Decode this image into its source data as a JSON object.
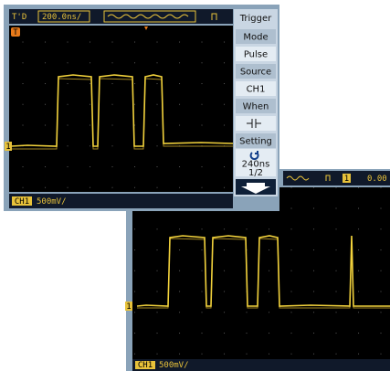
{
  "screen1": {
    "header": {
      "status": "T'D",
      "timebase": "200.0ns/"
    },
    "trigger_marker": "T",
    "channel_marker": "1",
    "menu": {
      "title": "Trigger",
      "items": [
        "Mode",
        "Pulse",
        "Source",
        "CH1",
        "When",
        "Setting",
        "240ns",
        "1/2"
      ]
    },
    "footer": {
      "channel": "CH1",
      "scale": "500mV/"
    }
  },
  "screen2": {
    "header": {
      "channel": "1",
      "level": "0.00"
    },
    "channel_marker": "1",
    "footer": {
      "channel": "CH1",
      "scale": "500mV/"
    }
  }
}
